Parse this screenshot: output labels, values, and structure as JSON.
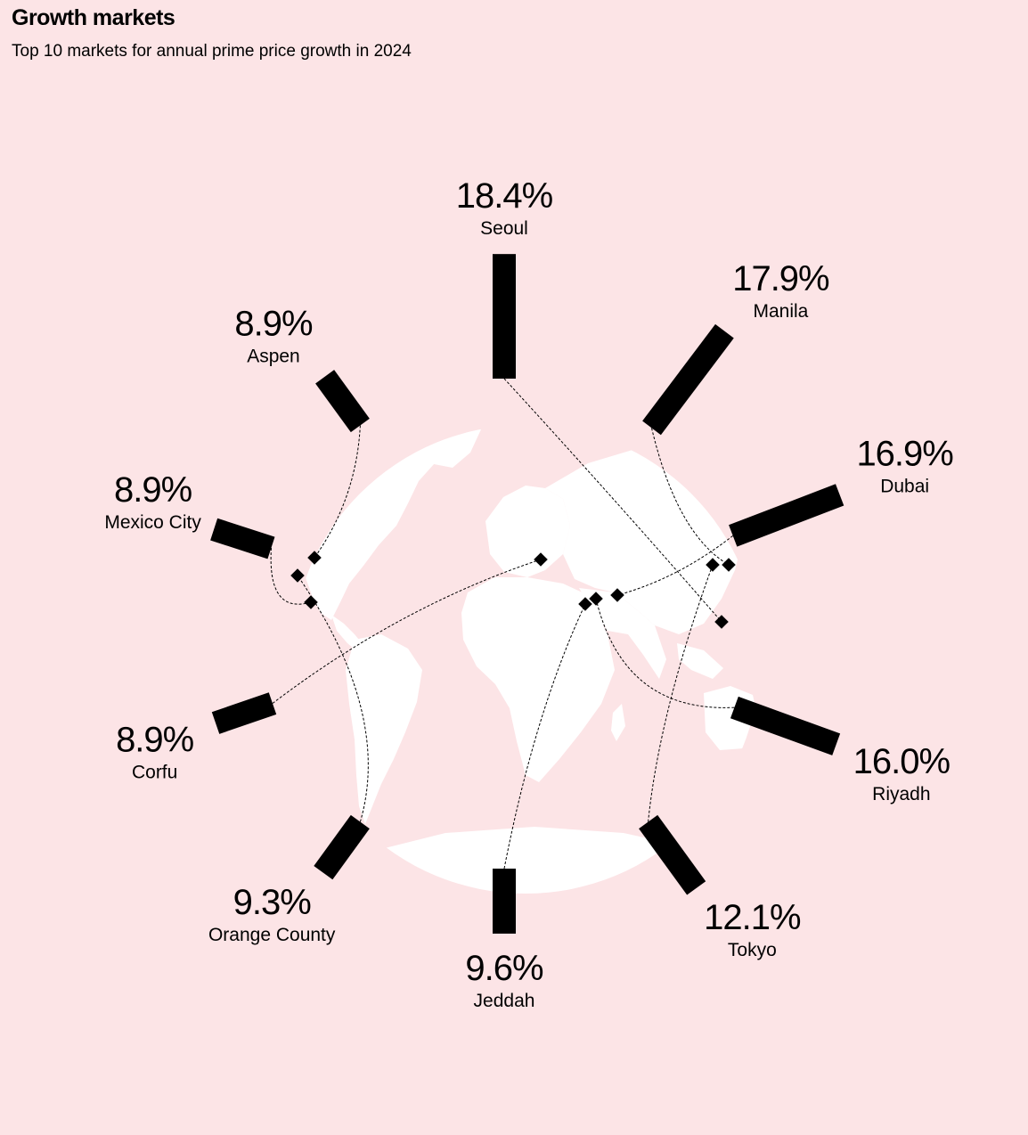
{
  "header": {
    "title": "Growth markets",
    "subtitle": "Top 10 markets for annual prime price growth in 2024"
  },
  "colors": {
    "background": "#fce4e6",
    "land": "#ffffff",
    "bars": "#000000"
  },
  "chart_data": {
    "type": "bar",
    "layout": "radial",
    "categories": [
      "Seoul",
      "Manila",
      "Dubai",
      "Riyadh",
      "Tokyo",
      "Jeddah",
      "Orange County",
      "Corfu",
      "Mexico City",
      "Aspen"
    ],
    "values": [
      18.4,
      17.9,
      16.9,
      16.0,
      12.1,
      9.6,
      9.3,
      8.9,
      8.9,
      8.9
    ],
    "labels": [
      "18.4%",
      "17.9%",
      "16.9%",
      "16.0%",
      "12.1%",
      "9.6%",
      "9.3%",
      "8.9%",
      "8.9%",
      "8.9%"
    ],
    "unit": "%"
  }
}
